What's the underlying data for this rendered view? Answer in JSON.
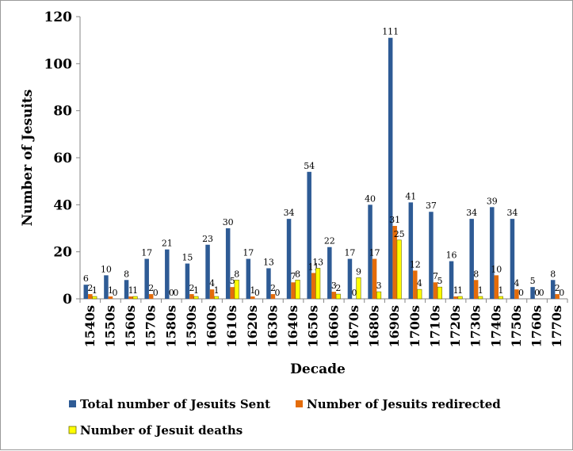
{
  "chart_data": {
    "type": "bar",
    "xlabel": "Decade",
    "ylabel": "Number of Jesuits",
    "ylim": [
      0,
      120
    ],
    "yticks": [
      0,
      20,
      40,
      60,
      80,
      100,
      120
    ],
    "grid": false,
    "legend_position": "bottom",
    "categories": [
      "1540s",
      "1550s",
      "1560s",
      "1570s",
      "1580s",
      "1590s",
      "1600s",
      "1610s",
      "1620s",
      "1630s",
      "1640s",
      "1650s",
      "1660s",
      "1670s",
      "1680s",
      "1690s",
      "1700s",
      "1710s",
      "1720s",
      "1730s",
      "1740s",
      "1750s",
      "1760s",
      "1770s"
    ],
    "series": [
      {
        "name": "Total number of Jesuits Sent",
        "color": "#2e5b95",
        "values": [
          6,
          10,
          8,
          17,
          21,
          15,
          23,
          30,
          17,
          13,
          34,
          54,
          22,
          17,
          40,
          111,
          41,
          37,
          16,
          34,
          39,
          34,
          5,
          8
        ]
      },
      {
        "name": "Number of Jesuits redirected",
        "color": "#e46c0a",
        "values": [
          2,
          1,
          1,
          2,
          0,
          2,
          4,
          5,
          1,
          2,
          7,
          11,
          3,
          0,
          17,
          31,
          12,
          7,
          1,
          8,
          10,
          4,
          0,
          2
        ]
      },
      {
        "name": "Number of Jesuit deaths",
        "color": "#ffff00",
        "values": [
          1,
          0,
          1,
          0,
          0,
          1,
          1,
          8,
          0,
          0,
          8,
          13,
          2,
          9,
          3,
          25,
          4,
          5,
          1,
          1,
          1,
          0,
          0,
          0
        ]
      }
    ]
  }
}
